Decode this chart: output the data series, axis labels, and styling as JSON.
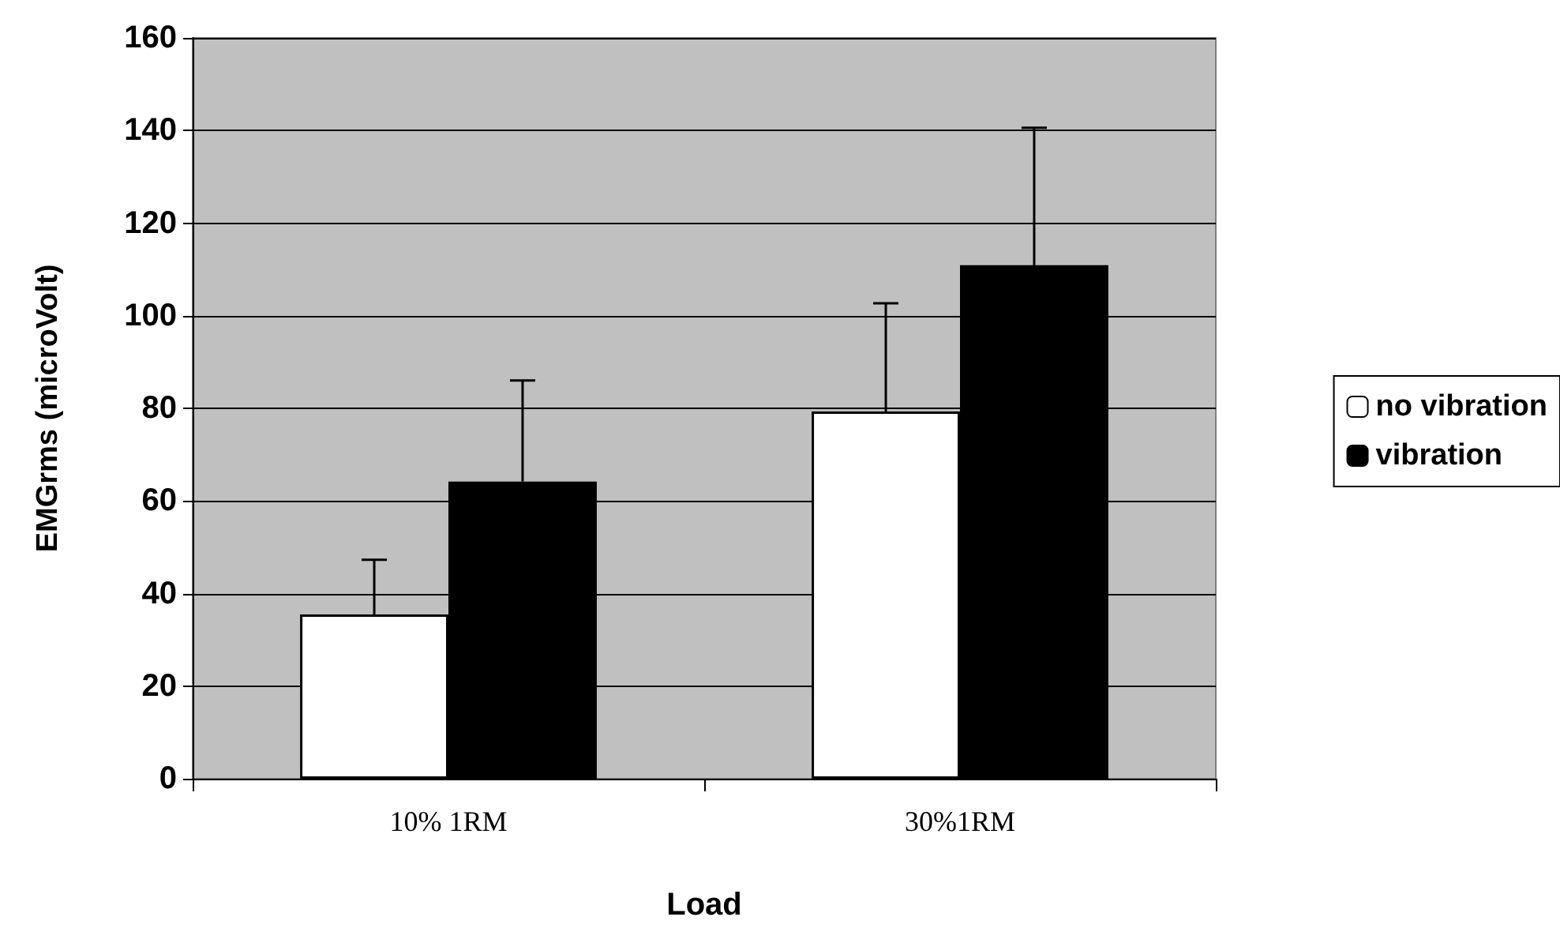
{
  "chart_data": {
    "type": "bar",
    "xlabel": "Load",
    "ylabel": "EMGrms (microVolt)",
    "categories": [
      "10% 1RM",
      "30%1RM"
    ],
    "series": [
      {
        "name": "no vibration",
        "color": "#ffffff",
        "values": [
          35.5,
          79.3
        ],
        "errors": [
          [
            35.5,
            47.3
          ],
          [
            79.3,
            102.7
          ]
        ]
      },
      {
        "name": "vibration",
        "color": "#000000",
        "values": [
          64.2,
          110.9
        ],
        "errors": [
          [
            64.2,
            86
          ],
          [
            110.9,
            140.6
          ]
        ]
      }
    ],
    "ylim": [
      0,
      160
    ],
    "yticks": [
      0,
      20,
      40,
      60,
      80,
      100,
      120,
      140,
      160
    ],
    "grid": "y",
    "legend": "right"
  }
}
